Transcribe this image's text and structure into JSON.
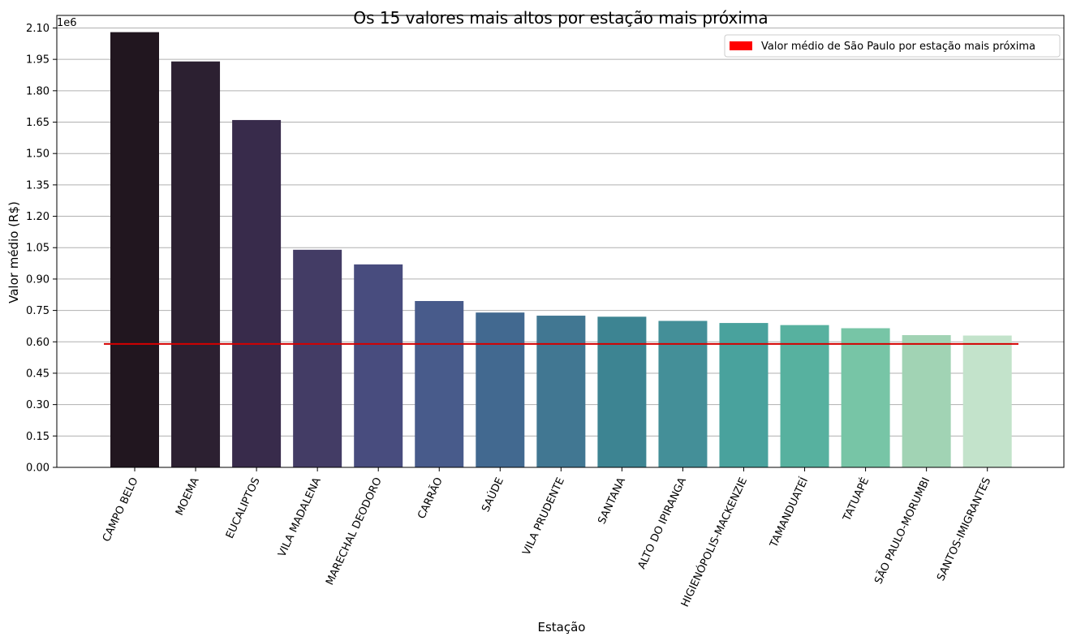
{
  "chart_data": {
    "type": "bar",
    "title": "Os 15 valores mais altos por estação mais próxima",
    "xlabel": "Estação",
    "ylabel": "Valor médio (R$)",
    "y_multiplier_label": "1e6",
    "ylim": [
      0,
      2.16
    ],
    "yticks": [
      0.0,
      0.15,
      0.3,
      0.45,
      0.6,
      0.75,
      0.9,
      1.05,
      1.2,
      1.35,
      1.5,
      1.65,
      1.8,
      1.95,
      2.1
    ],
    "ytick_labels": [
      "0.00",
      "0.15",
      "0.30",
      "0.45",
      "0.60",
      "0.75",
      "0.90",
      "1.05",
      "1.20",
      "1.35",
      "1.50",
      "1.65",
      "1.80",
      "1.95",
      "2.10"
    ],
    "grid": "horizontal",
    "legend_position": "top-right",
    "categories": [
      "CAMPO BELO",
      "MOEMA",
      "EUCALIPTOS",
      "VILA MADALENA",
      "MARECHAL DEODORO",
      "CARRÃO",
      "SAÚDE",
      "VILA PRUDENTE",
      "SANTANA",
      "ALTO DO IPIRANGA",
      "HIGIENÓPOLIS-MACKENZIE",
      "TAMANDUATEÍ",
      "TATUAPÉ",
      "SÃO PAULO-MORUMBI",
      "SANTOS-IMIGRANTES"
    ],
    "values": [
      2.08,
      1.94,
      1.66,
      1.04,
      0.97,
      0.795,
      0.74,
      0.725,
      0.72,
      0.7,
      0.69,
      0.68,
      0.665,
      0.632,
      0.63
    ],
    "colors": [
      "#21161f",
      "#2c2031",
      "#382b4b",
      "#433c65",
      "#484c7e",
      "#485b8b",
      "#426990",
      "#417792",
      "#3d8492",
      "#448f98",
      "#49a29d",
      "#57b19f",
      "#77c5a6",
      "#a1d3b4",
      "#c3e3cb"
    ],
    "reference_line": {
      "value": 0.59,
      "label": "Valor médio de São Paulo por estação mais próxima",
      "color": "#d40000",
      "legend_color": "#ff0000"
    }
  }
}
